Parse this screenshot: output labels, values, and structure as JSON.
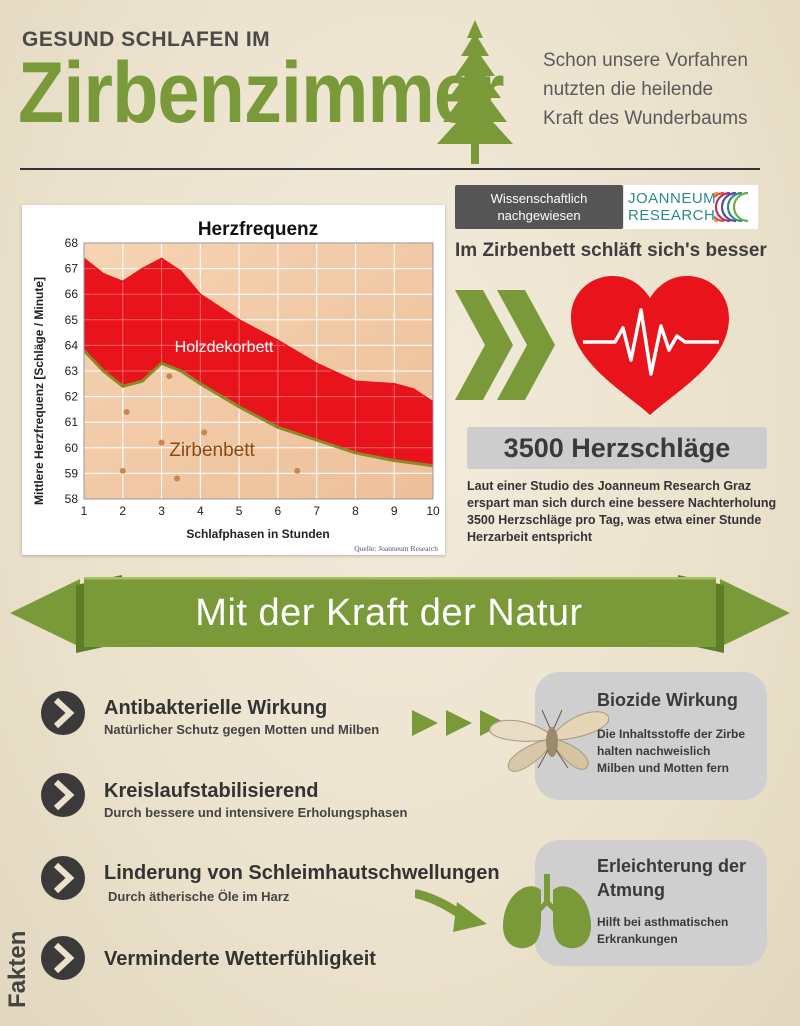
{
  "header": {
    "kicker": "GESUND SCHLAFEN IM",
    "title": "Zirbenzimmer",
    "tagline_lines": [
      "Schon unsere Vorfahren",
      "nutzten die heilende",
      "Kraft des Wunderbaums"
    ]
  },
  "chart": {
    "title": "Herzfrequenz",
    "ylabel": "Mittlere Herzfrequenz [Schläge / Minute]",
    "xlabel": "Schlafphasen in Stunden",
    "source": "Quelle: Joanneum Research",
    "label_upper": "Holzdekorbett",
    "label_lower": "Zirbenbett"
  },
  "chart_data": {
    "type": "area",
    "title": "Herzfrequenz",
    "xlabel": "Schlafphasen in Stunden",
    "ylabel": "Mittlere Herzfrequenz [Schläge / Minute]",
    "xlim": [
      1,
      10
    ],
    "ylim": [
      58,
      68
    ],
    "x_ticks": [
      1,
      2,
      3,
      4,
      5,
      6,
      7,
      8,
      9,
      10
    ],
    "y_ticks": [
      58,
      59,
      60,
      61,
      62,
      63,
      64,
      65,
      66,
      67,
      68
    ],
    "grid": true,
    "x": [
      1,
      1.5,
      2,
      2.5,
      3,
      3.5,
      4,
      5,
      6,
      7,
      8,
      9,
      9.5,
      10
    ],
    "series": [
      {
        "name": "Holzdekorbett",
        "values": [
          67.4,
          66.8,
          66.5,
          67.0,
          67.4,
          66.9,
          66.0,
          65.0,
          64.2,
          63.3,
          62.6,
          62.5,
          62.3,
          61.8
        ]
      },
      {
        "name": "Zirbenbett",
        "values": [
          63.8,
          63.0,
          62.4,
          62.6,
          63.3,
          63.0,
          62.5,
          61.6,
          60.8,
          60.3,
          59.8,
          59.5,
          59.4,
          59.3
        ]
      }
    ]
  },
  "badge": {
    "line1": "Wissenschaftlich",
    "line2": "nachgewiesen"
  },
  "logo": {
    "line1": "JOANNEUM",
    "line2": "RESEARCH"
  },
  "subhead": "Im Zirbenbett schläft sich's besser",
  "stat": {
    "headline": "3500 Herzschläge",
    "text_lines": [
      "Laut einer Studio des Joanneum Research Graz",
      "erspart man sich durch eine bessere Nachterholung",
      "3500 Herzschläge pro Tag, was etwa einer Stunde",
      "Herzarbeit entspricht"
    ]
  },
  "banner": {
    "title": "Mit der Kraft der Natur"
  },
  "facts": [
    {
      "title": "Antibakterielle Wirkung",
      "sub": "Natürlicher Schutz gegen Motten und Milben"
    },
    {
      "title": "Kreislaufstabilisierend",
      "sub": "Durch bessere und intensivere Erholungsphasen"
    },
    {
      "title": "Linderung von Schleimhautschwellungen",
      "sub": "Durch ätherische Öle im Harz"
    },
    {
      "title": "Verminderte Wetterfühligkeit",
      "sub": ""
    }
  ],
  "cards": {
    "biozide": {
      "title": "Biozide Wirkung",
      "lines": [
        "Die Inhaltsstoffe der Zirbe",
        "halten nachweislich",
        "Milben und Motten fern"
      ]
    },
    "atmung": {
      "title_lines": [
        "Erleichterung der",
        "Atmung"
      ],
      "lines": [
        "Hilft bei asthmatischen",
        "Erkrankungen"
      ]
    }
  },
  "side_label": "Fakten",
  "colors": {
    "green": "#7a9a3a",
    "dark_green": "#6b8a2e",
    "red": "#e8131b",
    "gray_card": "#cfcfcf",
    "dark": "#333333"
  }
}
